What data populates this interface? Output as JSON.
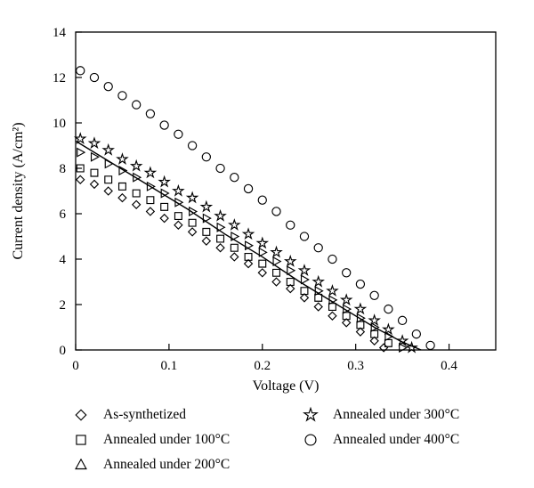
{
  "figure": {
    "background_color": "#ffffff",
    "accent_color": "#000000"
  },
  "chart_data": {
    "type": "scatter",
    "title": "",
    "xlabel": "Voltage (V)",
    "ylabel": "Current density (A/cm²)",
    "xlim": [
      0,
      0.45
    ],
    "ylim": [
      0,
      14
    ],
    "xticks": [
      0,
      0.1,
      0.2,
      0.3,
      0.4
    ],
    "xtick_labels": [
      "0",
      "0.1",
      "0.2",
      "0.3",
      "0.4"
    ],
    "yticks": [
      0,
      2,
      4,
      6,
      8,
      10,
      12,
      14
    ],
    "ytick_labels": [
      "0",
      "2",
      "4",
      "6",
      "8",
      "10",
      "12",
      "14"
    ],
    "grid": false,
    "legend_position": "below",
    "series": [
      {
        "name": "as-synthetized",
        "label": "As-synthetized",
        "marker": "diamond",
        "line": false,
        "color": "#000000",
        "x": [
          0.005,
          0.02,
          0.035,
          0.05,
          0.065,
          0.08,
          0.095,
          0.11,
          0.125,
          0.14,
          0.155,
          0.17,
          0.185,
          0.2,
          0.215,
          0.23,
          0.245,
          0.26,
          0.275,
          0.29,
          0.305,
          0.32,
          0.33
        ],
        "y": [
          7.5,
          7.3,
          7.0,
          6.7,
          6.4,
          6.1,
          5.8,
          5.5,
          5.2,
          4.8,
          4.5,
          4.1,
          3.8,
          3.4,
          3.0,
          2.7,
          2.3,
          1.9,
          1.5,
          1.2,
          0.8,
          0.4,
          0.1
        ]
      },
      {
        "name": "annealed-100c",
        "label": "Annealed under 100°C",
        "marker": "square",
        "line": false,
        "color": "#000000",
        "x": [
          0.005,
          0.02,
          0.035,
          0.05,
          0.065,
          0.08,
          0.095,
          0.11,
          0.125,
          0.14,
          0.155,
          0.17,
          0.185,
          0.2,
          0.215,
          0.23,
          0.245,
          0.26,
          0.275,
          0.29,
          0.305,
          0.32,
          0.335
        ],
        "y": [
          8.0,
          7.8,
          7.5,
          7.2,
          6.9,
          6.6,
          6.3,
          5.9,
          5.6,
          5.2,
          4.9,
          4.5,
          4.1,
          3.8,
          3.4,
          3.0,
          2.6,
          2.3,
          1.9,
          1.5,
          1.1,
          0.7,
          0.3
        ]
      },
      {
        "name": "annealed-200c",
        "label": "Annealed under 200°C",
        "marker": "triangle-right",
        "legend_marker": "triangle-up",
        "line": false,
        "color": "#000000",
        "x": [
          0.005,
          0.02,
          0.035,
          0.05,
          0.065,
          0.08,
          0.095,
          0.11,
          0.125,
          0.14,
          0.155,
          0.17,
          0.185,
          0.2,
          0.215,
          0.23,
          0.245,
          0.26,
          0.275,
          0.29,
          0.305,
          0.32,
          0.335,
          0.35
        ],
        "y": [
          8.7,
          8.5,
          8.2,
          7.9,
          7.6,
          7.2,
          6.9,
          6.5,
          6.1,
          5.8,
          5.4,
          5.0,
          4.6,
          4.3,
          3.9,
          3.5,
          3.1,
          2.6,
          2.2,
          1.8,
          1.4,
          1.0,
          0.6,
          0.1
        ]
      },
      {
        "name": "annealed-300c",
        "label": "Annealed under 300°C",
        "marker": "star",
        "line": false,
        "color": "#000000",
        "x": [
          0.005,
          0.02,
          0.035,
          0.05,
          0.065,
          0.08,
          0.095,
          0.11,
          0.125,
          0.14,
          0.155,
          0.17,
          0.185,
          0.2,
          0.215,
          0.23,
          0.245,
          0.26,
          0.275,
          0.29,
          0.305,
          0.32,
          0.335,
          0.35,
          0.36
        ],
        "y": [
          9.3,
          9.1,
          8.8,
          8.4,
          8.1,
          7.8,
          7.4,
          7.0,
          6.7,
          6.3,
          5.9,
          5.5,
          5.1,
          4.7,
          4.3,
          3.9,
          3.5,
          3.0,
          2.6,
          2.2,
          1.8,
          1.3,
          0.9,
          0.4,
          0.1
        ]
      },
      {
        "name": "annealed-400c",
        "label": "Annealed under 400°C",
        "marker": "circle",
        "line": false,
        "color": "#000000",
        "x": [
          0.005,
          0.02,
          0.035,
          0.05,
          0.065,
          0.08,
          0.095,
          0.11,
          0.125,
          0.14,
          0.155,
          0.17,
          0.185,
          0.2,
          0.215,
          0.23,
          0.245,
          0.26,
          0.275,
          0.29,
          0.305,
          0.32,
          0.335,
          0.35,
          0.365,
          0.38
        ],
        "y": [
          12.3,
          12.0,
          11.6,
          11.2,
          10.8,
          10.4,
          9.9,
          9.5,
          9.0,
          8.5,
          8.0,
          7.6,
          7.1,
          6.6,
          6.1,
          5.5,
          5.0,
          4.5,
          4.0,
          3.4,
          2.9,
          2.4,
          1.8,
          1.3,
          0.7,
          0.2
        ]
      },
      {
        "name": "solid-line",
        "label": "",
        "marker": "none",
        "line": true,
        "color": "#000000",
        "x": [
          0,
          0.04,
          0.08,
          0.12,
          0.16,
          0.2,
          0.24,
          0.28,
          0.32,
          0.35,
          0.37
        ],
        "y": [
          9.2,
          8.2,
          7.2,
          6.2,
          5.1,
          4.1,
          3.0,
          2.0,
          1.0,
          0.35,
          0.0
        ]
      }
    ],
    "legend": {
      "columns": [
        [
          "as-synthetized",
          "annealed-100c",
          "annealed-200c"
        ],
        [
          "annealed-300c",
          "annealed-400c"
        ]
      ]
    }
  }
}
